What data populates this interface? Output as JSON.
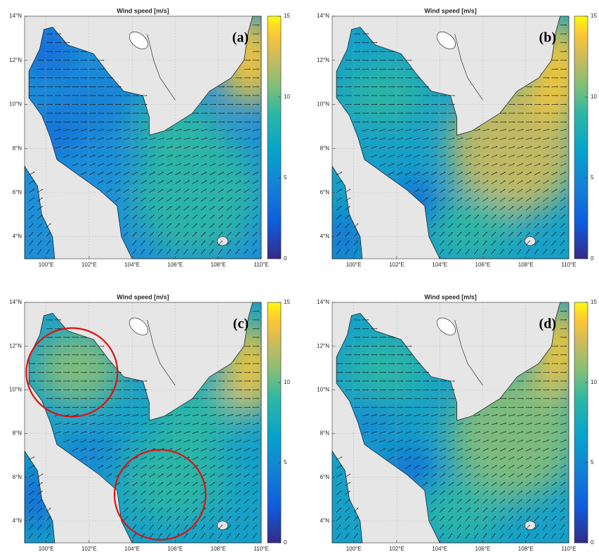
{
  "panels": [
    {
      "title": "Wind speed [m/s]",
      "label": "(a)",
      "xlim": [
        99,
        110
      ],
      "ylim": [
        3,
        14
      ],
      "xticks": [
        {
          "value": 100,
          "label": "100°E"
        },
        {
          "value": 102,
          "label": "102°E"
        },
        {
          "value": 104,
          "label": "104°E"
        },
        {
          "value": 106,
          "label": "106°E"
        },
        {
          "value": 108,
          "label": "108°E"
        },
        {
          "value": 110,
          "label": "110°E"
        }
      ],
      "yticks": [
        {
          "value": 4,
          "label": "4°N"
        },
        {
          "value": 6,
          "label": "6°N"
        },
        {
          "value": 8,
          "label": "8°N"
        },
        {
          "value": 10,
          "label": "10°N"
        },
        {
          "value": 12,
          "label": "12°N"
        },
        {
          "value": 14,
          "label": "14°N"
        }
      ],
      "clim": [
        0,
        15
      ],
      "cticks": [
        0,
        5,
        10,
        15
      ]
    },
    {
      "title": "Wind speed [m/s]",
      "label": "(b)",
      "xlim": [
        99,
        110
      ],
      "ylim": [
        3,
        14
      ],
      "xticks": [
        {
          "value": 100,
          "label": "100°E"
        },
        {
          "value": 102,
          "label": "102°E"
        },
        {
          "value": 104,
          "label": "104°E"
        },
        {
          "value": 106,
          "label": "106°E"
        },
        {
          "value": 108,
          "label": "108°E"
        },
        {
          "value": 110,
          "label": "110°E"
        }
      ],
      "yticks": [
        {
          "value": 4,
          "label": "4°N"
        },
        {
          "value": 6,
          "label": "6°N"
        },
        {
          "value": 8,
          "label": "8°N"
        },
        {
          "value": 10,
          "label": "10°N"
        },
        {
          "value": 12,
          "label": "12°N"
        },
        {
          "value": 14,
          "label": "14°N"
        }
      ],
      "clim": [
        0,
        15
      ],
      "cticks": [
        0,
        5,
        10,
        15
      ]
    },
    {
      "title": "Wind speed [m/s]",
      "label": "(c)",
      "xlim": [
        99,
        110
      ],
      "ylim": [
        3,
        14
      ],
      "xticks": [
        {
          "value": 100,
          "label": "100°E"
        },
        {
          "value": 102,
          "label": "102°E"
        },
        {
          "value": 104,
          "label": "104°E"
        },
        {
          "value": 106,
          "label": "106°E"
        },
        {
          "value": 108,
          "label": "108°E"
        },
        {
          "value": 110,
          "label": "110°E"
        }
      ],
      "yticks": [
        {
          "value": 4,
          "label": "4°N"
        },
        {
          "value": 6,
          "label": "6°N"
        },
        {
          "value": 8,
          "label": "8°N"
        },
        {
          "value": 10,
          "label": "10°N"
        },
        {
          "value": 12,
          "label": "12°N"
        },
        {
          "value": 14,
          "label": "14°N"
        }
      ],
      "clim": [
        0,
        15
      ],
      "cticks": [
        0,
        5,
        10,
        15
      ]
    },
    {
      "title": "Wind speed [m/s]",
      "label": "(d)",
      "xlim": [
        99,
        110
      ],
      "ylim": [
        3,
        14
      ],
      "xticks": [
        {
          "value": 100,
          "label": "100°E"
        },
        {
          "value": 102,
          "label": "102°E"
        },
        {
          "value": 104,
          "label": "104°E"
        },
        {
          "value": 106,
          "label": "106°E"
        },
        {
          "value": 108,
          "label": "108°E"
        },
        {
          "value": 110,
          "label": "110°E"
        }
      ],
      "yticks": [
        {
          "value": 4,
          "label": "4°N"
        },
        {
          "value": 6,
          "label": "6°N"
        },
        {
          "value": 8,
          "label": "8°N"
        },
        {
          "value": 10,
          "label": "10°N"
        },
        {
          "value": 12,
          "label": "12°N"
        },
        {
          "value": 14,
          "label": "14°N"
        }
      ],
      "clim": [
        0,
        15
      ],
      "cticks": [
        0,
        5,
        10,
        15
      ]
    }
  ]
}
